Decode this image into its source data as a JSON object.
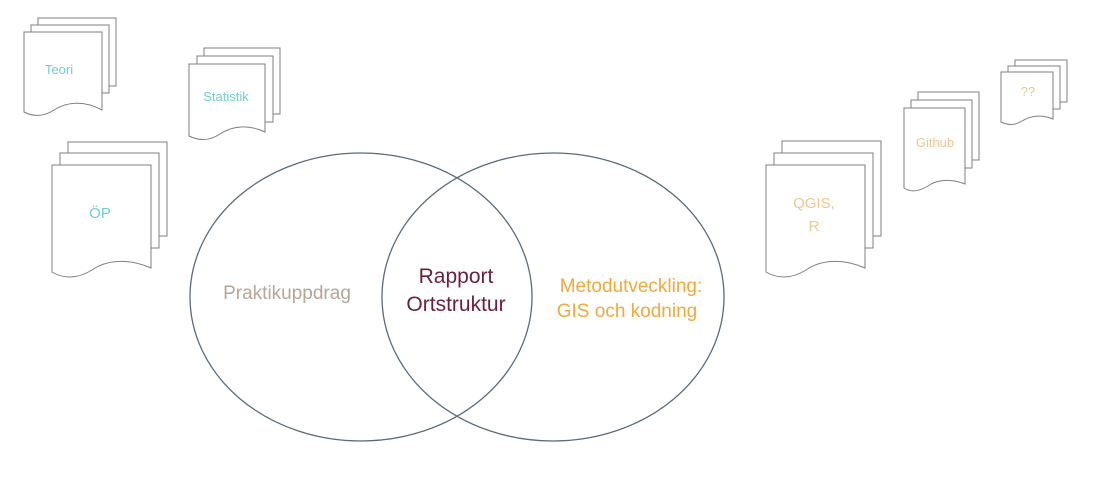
{
  "documents": {
    "teori": "Teori",
    "statistik": "Statistik",
    "op": "ÖP",
    "qgis_line1": "QGIS,",
    "qgis_line2": "R",
    "github": "Github",
    "unknown": "??"
  },
  "venn": {
    "left": "Praktikuppdrag",
    "center_line1": "Rapport",
    "center_line2": "Ortstruktur",
    "right_line1": "Metodutveckling:",
    "right_line2": "GIS och kodning"
  },
  "colors": {
    "teal": "#6fcfcf",
    "orange": "#f3c58e",
    "left_label": "#b7a49a",
    "center_label": "#6b1f3f",
    "right_label": "#f0a93c",
    "circle_stroke": "#5a6b7a"
  }
}
